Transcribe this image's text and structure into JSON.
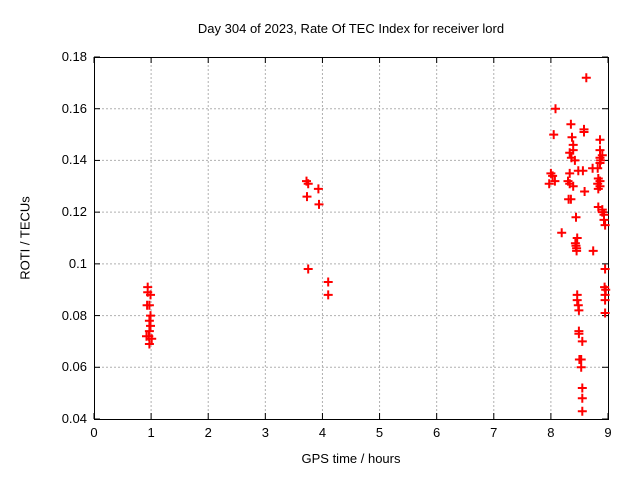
{
  "chart_data": {
    "type": "scatter",
    "title": "Day 304 of 2023, Rate Of TEC Index for receiver lord",
    "xlabel": "GPS time / hours",
    "ylabel": "ROTI / TECUs",
    "xlim": [
      0,
      9
    ],
    "ylim": [
      0.04,
      0.18
    ],
    "xticks": [
      0,
      1,
      2,
      3,
      4,
      5,
      6,
      7,
      8,
      9
    ],
    "xticklabels": [
      "0",
      "1",
      "2",
      "3",
      "4",
      "5",
      "6",
      "7",
      "8",
      "9"
    ],
    "yticks": [
      0.04,
      0.06,
      0.08,
      0.1,
      0.12,
      0.14,
      0.16,
      0.18
    ],
    "yticklabels": [
      "0.04",
      "0.06",
      "0.08",
      "0.1",
      "0.12",
      "0.14",
      "0.16",
      "0.18"
    ],
    "grid": true,
    "legend": "none",
    "marker": "plus",
    "colors": {
      "marker": "#ff0000",
      "grid": "#b0b0b0",
      "frame": "#000000",
      "text": "#000000",
      "background": "#ffffff"
    },
    "series": [
      {
        "name": "ROTI",
        "points": [
          [
            0.94,
            0.091
          ],
          [
            0.94,
            0.089
          ],
          [
            0.99,
            0.088
          ],
          [
            0.93,
            0.084
          ],
          [
            0.97,
            0.084
          ],
          [
            0.99,
            0.08
          ],
          [
            0.97,
            0.078
          ],
          [
            0.99,
            0.076
          ],
          [
            0.97,
            0.074
          ],
          [
            0.92,
            0.072
          ],
          [
            0.96,
            0.072
          ],
          [
            1.01,
            0.071
          ],
          [
            0.97,
            0.069
          ],
          [
            3.72,
            0.132
          ],
          [
            3.75,
            0.131
          ],
          [
            3.93,
            0.129
          ],
          [
            3.73,
            0.126
          ],
          [
            3.94,
            0.123
          ],
          [
            3.75,
            0.098
          ],
          [
            4.1,
            0.093
          ],
          [
            4.1,
            0.088
          ],
          [
            8.62,
            0.172
          ],
          [
            8.08,
            0.16
          ],
          [
            8.35,
            0.154
          ],
          [
            8.58,
            0.152
          ],
          [
            8.58,
            0.151
          ],
          [
            8.05,
            0.15
          ],
          [
            8.37,
            0.149
          ],
          [
            8.86,
            0.148
          ],
          [
            8.39,
            0.146
          ],
          [
            8.86,
            0.144
          ],
          [
            8.39,
            0.144
          ],
          [
            8.33,
            0.143
          ],
          [
            8.9,
            0.142
          ],
          [
            8.36,
            0.141
          ],
          [
            8.86,
            0.141
          ],
          [
            8.42,
            0.14
          ],
          [
            8.87,
            0.14
          ],
          [
            8.86,
            0.139
          ],
          [
            8.82,
            0.137
          ],
          [
            8.73,
            0.137
          ],
          [
            8.56,
            0.136
          ],
          [
            8.48,
            0.136
          ],
          [
            8.33,
            0.135
          ],
          [
            8.0,
            0.135
          ],
          [
            8.03,
            0.134
          ],
          [
            7.97,
            0.131
          ],
          [
            8.07,
            0.132
          ],
          [
            8.83,
            0.133
          ],
          [
            8.3,
            0.132
          ],
          [
            8.33,
            0.131
          ],
          [
            8.39,
            0.13
          ],
          [
            8.86,
            0.132
          ],
          [
            8.82,
            0.131
          ],
          [
            8.86,
            0.13
          ],
          [
            8.83,
            0.129
          ],
          [
            8.59,
            0.128
          ],
          [
            8.31,
            0.125
          ],
          [
            8.35,
            0.125
          ],
          [
            8.83,
            0.122
          ],
          [
            8.9,
            0.121
          ],
          [
            8.9,
            0.12
          ],
          [
            8.44,
            0.118
          ],
          [
            8.93,
            0.119
          ],
          [
            8.93,
            0.117
          ],
          [
            8.95,
            0.115
          ],
          [
            8.19,
            0.112
          ],
          [
            8.46,
            0.11
          ],
          [
            8.43,
            0.108
          ],
          [
            8.44,
            0.107
          ],
          [
            8.45,
            0.106
          ],
          [
            8.45,
            0.105
          ],
          [
            8.74,
            0.105
          ],
          [
            8.95,
            0.098
          ],
          [
            8.94,
            0.091
          ],
          [
            8.96,
            0.09
          ],
          [
            8.95,
            0.088
          ],
          [
            8.95,
            0.086
          ],
          [
            8.46,
            0.088
          ],
          [
            8.46,
            0.086
          ],
          [
            8.48,
            0.084
          ],
          [
            8.49,
            0.082
          ],
          [
            8.95,
            0.081
          ],
          [
            8.49,
            0.074
          ],
          [
            8.49,
            0.073
          ],
          [
            8.55,
            0.07
          ],
          [
            8.5,
            0.063
          ],
          [
            8.53,
            0.063
          ],
          [
            8.53,
            0.06
          ],
          [
            8.55,
            0.052
          ],
          [
            8.55,
            0.048
          ],
          [
            8.55,
            0.043
          ]
        ]
      }
    ]
  }
}
